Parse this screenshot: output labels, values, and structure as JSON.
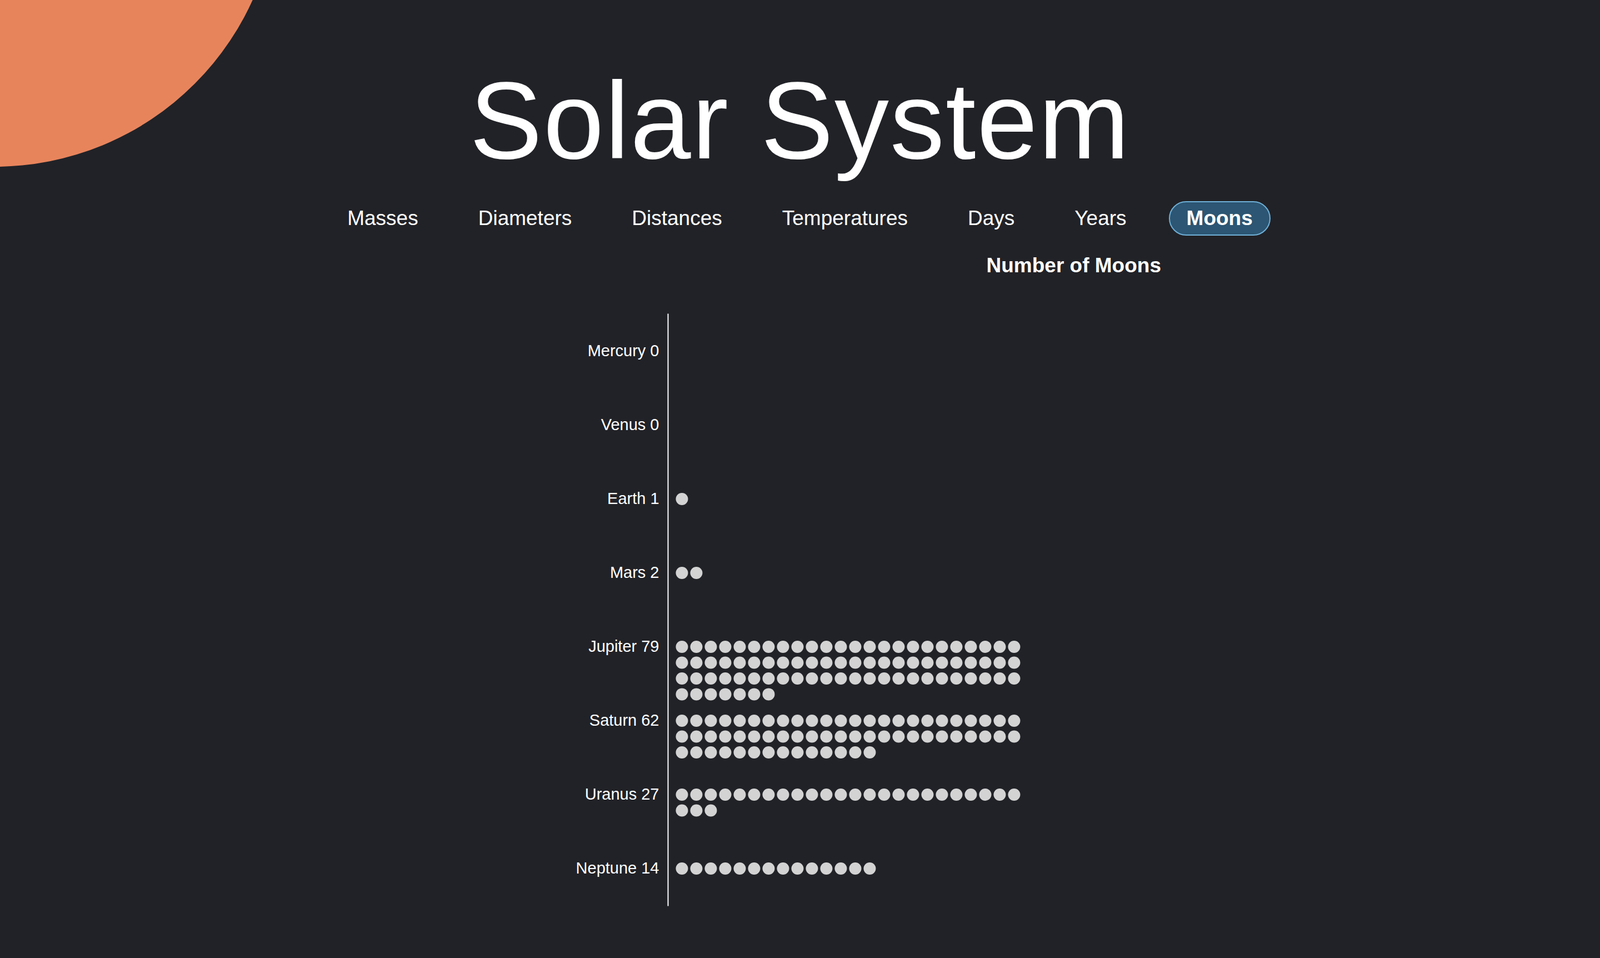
{
  "nav": {
    "items": [
      "Masses",
      "Diameters",
      "Distances",
      "Temperatures",
      "Days",
      "Years",
      "Moons"
    ],
    "active": "Moons"
  },
  "chart_data": {
    "type": "dot",
    "orientation": "horizontal",
    "title": "Solar System",
    "subtitle": "Number of Moons",
    "categories": [
      "Mercury 0",
      "Venus 0",
      "Earth 1",
      "Mars 2",
      "Jupiter 79",
      "Saturn 62",
      "Uranus 27",
      "Neptune 14"
    ],
    "values": [
      0,
      0,
      1,
      2,
      79,
      62,
      27,
      14
    ],
    "color": "#d3d3d3",
    "tick_labels": "y",
    "grid": false
  }
}
